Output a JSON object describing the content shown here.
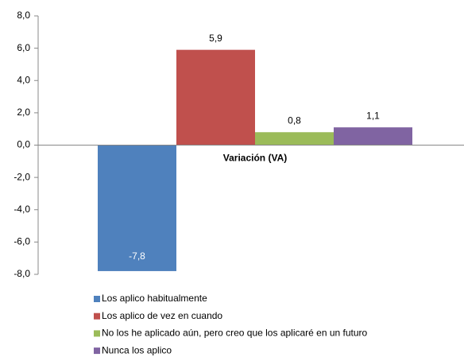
{
  "chart_data": {
    "type": "bar",
    "categories": [
      "Variación (VA)"
    ],
    "series": [
      {
        "name": "Los aplico habitualmente",
        "color": "#4f81bd",
        "values": [
          -7.8
        ],
        "value_labels": [
          "-7,8"
        ]
      },
      {
        "name": "Los aplico de vez en cuando",
        "color": "#c0504d",
        "values": [
          5.9
        ],
        "value_labels": [
          "5,9"
        ]
      },
      {
        "name": "No los he aplicado aún, pero creo que los aplicaré en un futuro",
        "color": "#9bbb59",
        "values": [
          0.8
        ],
        "value_labels": [
          "0,8"
        ]
      },
      {
        "name": "Nunca los aplico",
        "color": "#8064a2",
        "values": [
          1.1
        ],
        "value_labels": [
          "1,1"
        ]
      }
    ],
    "ylim": [
      -8,
      8
    ],
    "yticks": [
      {
        "value": -8,
        "label": "-8,0"
      },
      {
        "value": -6,
        "label": "-6,0"
      },
      {
        "value": -4,
        "label": "-4,0"
      },
      {
        "value": -2,
        "label": "-2,0"
      },
      {
        "value": 0,
        "label": "0,0"
      },
      {
        "value": 2,
        "label": "2,0"
      },
      {
        "value": 4,
        "label": "4,0"
      },
      {
        "value": 6,
        "label": "6,0"
      },
      {
        "value": 8,
        "label": "8,0"
      }
    ],
    "legend": "bottom"
  }
}
